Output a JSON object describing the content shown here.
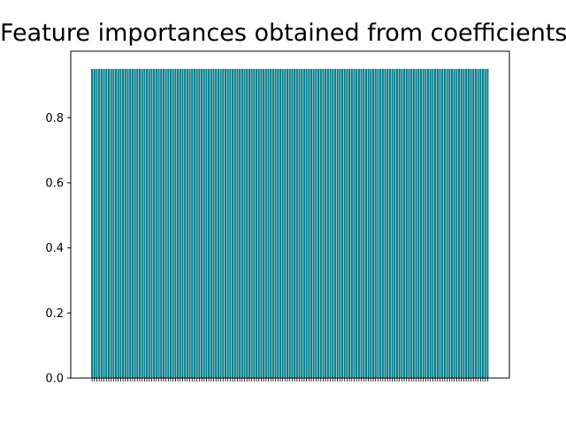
{
  "chart_data": {
    "type": "bar",
    "title": "Feature importances obtained from coefficients",
    "xlabel": "",
    "ylabel": "",
    "ylim": [
      0,
      0.95
    ],
    "yticks": [
      0.0,
      0.2,
      0.4,
      0.6,
      0.8
    ],
    "ytick_labels": [
      "0.0",
      "0.2",
      "0.4",
      "0.6",
      "0.8"
    ],
    "bar_color": "#087e8b",
    "bar_value": 0.95,
    "bar_count": 167,
    "grid": false
  }
}
